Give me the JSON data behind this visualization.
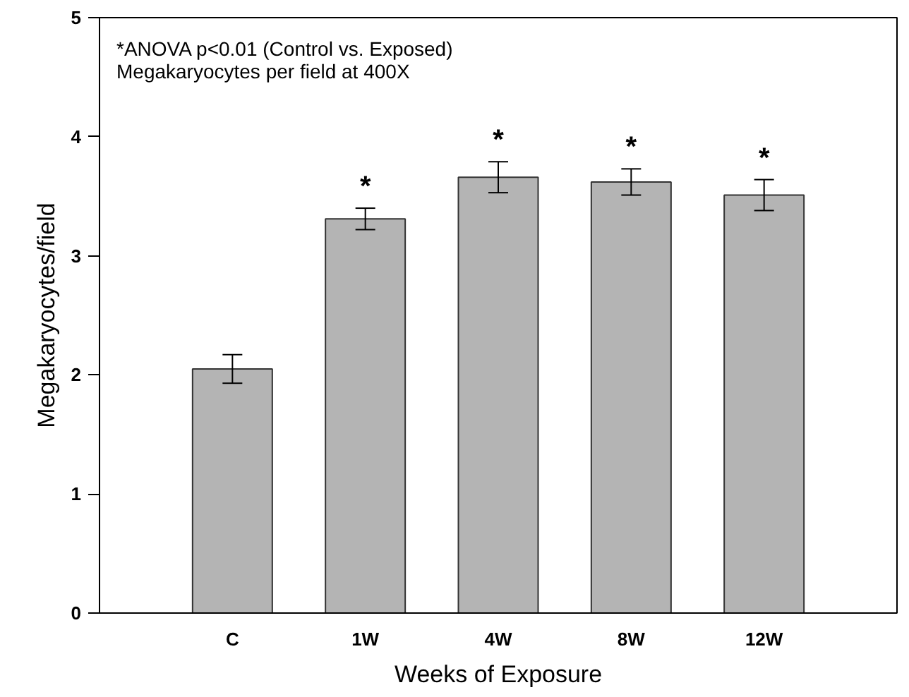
{
  "chart_data": {
    "type": "bar",
    "xlabel": "Weeks of Exposure",
    "ylabel": "Megakaryocytes/field",
    "categories": [
      "C",
      "1W",
      "4W",
      "8W",
      "12W"
    ],
    "values": [
      2.05,
      3.31,
      3.66,
      3.62,
      3.51
    ],
    "errors": [
      0.12,
      0.09,
      0.13,
      0.11,
      0.13
    ],
    "color": "#b4b4b4",
    "ylim": [
      0,
      5
    ],
    "yticks": [
      0,
      1,
      2,
      3,
      4,
      5
    ],
    "grid": false,
    "annotations": [
      "*ANOVA p<0.01 (Control vs. Exposed)",
      "Megakaryocytes per field at 400X",
      "*",
      "*",
      "*",
      "*"
    ]
  }
}
